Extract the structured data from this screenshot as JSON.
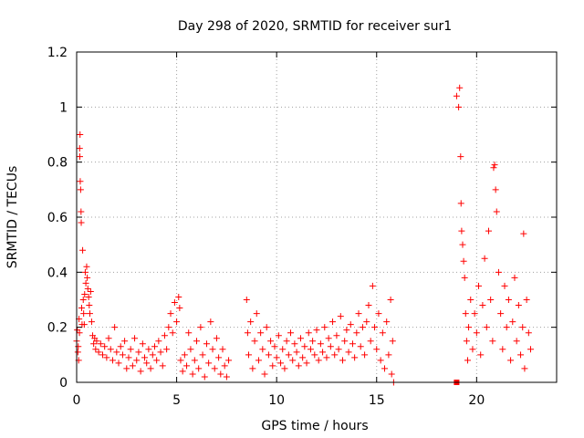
{
  "chart_data": {
    "type": "scatter",
    "title": "Day 298 of 2020, SRMTID for receiver sur1",
    "xlabel": "GPS time / hours",
    "ylabel": "SRMTID / TECUs",
    "xlim": [
      0,
      24
    ],
    "ylim": [
      0,
      1.2
    ],
    "xticks": [
      0,
      5,
      10,
      15,
      20
    ],
    "xtick_labels": [
      "0",
      "5",
      "10",
      "15",
      "20"
    ],
    "yticks": [
      0,
      0.2,
      0.4,
      0.6,
      0.8,
      1,
      1.2
    ],
    "ytick_labels": [
      "0",
      "0.2",
      "0.4",
      "0.6",
      "0.8",
      "1",
      "1.2"
    ],
    "grid": true,
    "marker": "plus",
    "color": "#ff0000",
    "series": [
      {
        "name": "sur1",
        "points": [
          [
            0.0,
            0.15
          ],
          [
            0.03,
            0.19
          ],
          [
            0.06,
            0.11
          ],
          [
            0.08,
            0.13
          ],
          [
            0.1,
            0.08
          ],
          [
            0.12,
            0.23
          ],
          [
            0.14,
            0.18
          ],
          [
            0.15,
            0.85
          ],
          [
            0.16,
            0.82
          ],
          [
            0.17,
            0.9
          ],
          [
            0.18,
            0.73
          ],
          [
            0.2,
            0.7
          ],
          [
            0.22,
            0.62
          ],
          [
            0.23,
            0.58
          ],
          [
            0.25,
            0.27
          ],
          [
            0.27,
            0.21
          ],
          [
            0.3,
            0.48
          ],
          [
            0.33,
            0.3
          ],
          [
            0.35,
            0.25
          ],
          [
            0.38,
            0.21
          ],
          [
            0.4,
            0.32
          ],
          [
            0.43,
            0.4
          ],
          [
            0.46,
            0.36
          ],
          [
            0.5,
            0.42
          ],
          [
            0.53,
            0.38
          ],
          [
            0.56,
            0.34
          ],
          [
            0.6,
            0.31
          ],
          [
            0.63,
            0.28
          ],
          [
            0.66,
            0.25
          ],
          [
            0.7,
            0.33
          ],
          [
            0.75,
            0.22
          ],
          [
            0.8,
            0.17
          ],
          [
            0.85,
            0.14
          ],
          [
            0.9,
            0.16
          ],
          [
            0.95,
            0.12
          ],
          [
            1.0,
            0.15
          ],
          [
            1.1,
            0.11
          ],
          [
            1.2,
            0.14
          ],
          [
            1.3,
            0.1
          ],
          [
            1.4,
            0.13
          ],
          [
            1.5,
            0.09
          ],
          [
            1.6,
            0.16
          ],
          [
            1.7,
            0.12
          ],
          [
            1.8,
            0.08
          ],
          [
            1.9,
            0.2
          ],
          [
            2.0,
            0.11
          ],
          [
            2.1,
            0.07
          ],
          [
            2.2,
            0.13
          ],
          [
            2.3,
            0.1
          ],
          [
            2.4,
            0.15
          ],
          [
            2.5,
            0.05
          ],
          [
            2.6,
            0.09
          ],
          [
            2.7,
            0.12
          ],
          [
            2.8,
            0.06
          ],
          [
            2.9,
            0.16
          ],
          [
            3.0,
            0.08
          ],
          [
            3.1,
            0.11
          ],
          [
            3.2,
            0.04
          ],
          [
            3.3,
            0.14
          ],
          [
            3.4,
            0.09
          ],
          [
            3.5,
            0.07
          ],
          [
            3.6,
            0.12
          ],
          [
            3.7,
            0.05
          ],
          [
            3.8,
            0.1
          ],
          [
            3.9,
            0.13
          ],
          [
            4.0,
            0.08
          ],
          [
            4.1,
            0.15
          ],
          [
            4.2,
            0.11
          ],
          [
            4.3,
            0.06
          ],
          [
            4.4,
            0.17
          ],
          [
            4.5,
            0.12
          ],
          [
            4.6,
            0.2
          ],
          [
            4.7,
            0.25
          ],
          [
            4.8,
            0.18
          ],
          [
            4.9,
            0.29
          ],
          [
            5.0,
            0.22
          ],
          [
            5.1,
            0.31
          ],
          [
            5.15,
            0.27
          ],
          [
            5.2,
            0.08
          ],
          [
            5.3,
            0.04
          ],
          [
            5.4,
            0.1
          ],
          [
            5.5,
            0.06
          ],
          [
            5.6,
            0.18
          ],
          [
            5.7,
            0.12
          ],
          [
            5.8,
            0.03
          ],
          [
            5.9,
            0.08
          ],
          [
            6.0,
            0.15
          ],
          [
            6.1,
            0.05
          ],
          [
            6.2,
            0.2
          ],
          [
            6.3,
            0.1
          ],
          [
            6.4,
            0.02
          ],
          [
            6.5,
            0.14
          ],
          [
            6.6,
            0.07
          ],
          [
            6.7,
            0.22
          ],
          [
            6.8,
            0.12
          ],
          [
            6.9,
            0.05
          ],
          [
            7.0,
            0.16
          ],
          [
            7.1,
            0.09
          ],
          [
            7.2,
            0.03
          ],
          [
            7.3,
            0.12
          ],
          [
            7.4,
            0.06
          ],
          [
            7.5,
            0.02
          ],
          [
            7.6,
            0.08
          ],
          [
            8.5,
            0.3
          ],
          [
            8.55,
            0.18
          ],
          [
            8.6,
            0.1
          ],
          [
            8.7,
            0.22
          ],
          [
            8.8,
            0.05
          ],
          [
            8.9,
            0.15
          ],
          [
            9.0,
            0.25
          ],
          [
            9.1,
            0.08
          ],
          [
            9.2,
            0.18
          ],
          [
            9.3,
            0.12
          ],
          [
            9.4,
            0.03
          ],
          [
            9.5,
            0.2
          ],
          [
            9.6,
            0.1
          ],
          [
            9.7,
            0.15
          ],
          [
            9.8,
            0.06
          ],
          [
            9.9,
            0.13
          ],
          [
            10.0,
            0.09
          ],
          [
            10.1,
            0.17
          ],
          [
            10.2,
            0.07
          ],
          [
            10.3,
            0.12
          ],
          [
            10.4,
            0.05
          ],
          [
            10.5,
            0.15
          ],
          [
            10.6,
            0.1
          ],
          [
            10.7,
            0.18
          ],
          [
            10.8,
            0.08
          ],
          [
            10.9,
            0.14
          ],
          [
            11.0,
            0.11
          ],
          [
            11.1,
            0.06
          ],
          [
            11.2,
            0.16
          ],
          [
            11.3,
            0.09
          ],
          [
            11.4,
            0.13
          ],
          [
            11.5,
            0.07
          ],
          [
            11.6,
            0.18
          ],
          [
            11.7,
            0.12
          ],
          [
            11.8,
            0.15
          ],
          [
            11.9,
            0.1
          ],
          [
            12.0,
            0.19
          ],
          [
            12.1,
            0.08
          ],
          [
            12.2,
            0.14
          ],
          [
            12.3,
            0.11
          ],
          [
            12.4,
            0.2
          ],
          [
            12.5,
            0.09
          ],
          [
            12.6,
            0.16
          ],
          [
            12.7,
            0.13
          ],
          [
            12.8,
            0.22
          ],
          [
            12.9,
            0.1
          ],
          [
            13.0,
            0.17
          ],
          [
            13.1,
            0.12
          ],
          [
            13.2,
            0.24
          ],
          [
            13.3,
            0.08
          ],
          [
            13.4,
            0.15
          ],
          [
            13.5,
            0.19
          ],
          [
            13.6,
            0.11
          ],
          [
            13.7,
            0.21
          ],
          [
            13.8,
            0.14
          ],
          [
            13.9,
            0.09
          ],
          [
            14.0,
            0.18
          ],
          [
            14.1,
            0.25
          ],
          [
            14.2,
            0.13
          ],
          [
            14.3,
            0.2
          ],
          [
            14.4,
            0.1
          ],
          [
            14.5,
            0.22
          ],
          [
            14.6,
            0.28
          ],
          [
            14.7,
            0.15
          ],
          [
            14.8,
            0.35
          ],
          [
            14.9,
            0.2
          ],
          [
            15.0,
            0.12
          ],
          [
            15.1,
            0.25
          ],
          [
            15.2,
            0.08
          ],
          [
            15.3,
            0.18
          ],
          [
            15.4,
            0.05
          ],
          [
            15.5,
            0.22
          ],
          [
            15.6,
            0.1
          ],
          [
            15.7,
            0.3
          ],
          [
            15.75,
            0.03
          ],
          [
            15.8,
            0.15
          ],
          [
            15.85,
            0.0
          ],
          [
            19.0,
            1.04
          ],
          [
            19.1,
            1.0
          ],
          [
            19.15,
            1.07
          ],
          [
            19.2,
            0.82
          ],
          [
            19.22,
            0.65
          ],
          [
            19.25,
            0.55
          ],
          [
            19.3,
            0.5
          ],
          [
            19.35,
            0.44
          ],
          [
            19.4,
            0.38
          ],
          [
            19.45,
            0.25
          ],
          [
            19.5,
            0.15
          ],
          [
            19.55,
            0.08
          ],
          [
            19.6,
            0.2
          ],
          [
            19.7,
            0.3
          ],
          [
            19.8,
            0.12
          ],
          [
            19.9,
            0.25
          ],
          [
            20.0,
            0.18
          ],
          [
            20.1,
            0.35
          ],
          [
            20.2,
            0.1
          ],
          [
            20.3,
            0.28
          ],
          [
            20.4,
            0.45
          ],
          [
            20.5,
            0.2
          ],
          [
            20.6,
            0.55
          ],
          [
            20.7,
            0.3
          ],
          [
            20.8,
            0.15
          ],
          [
            20.85,
            0.78
          ],
          [
            20.9,
            0.79
          ],
          [
            20.95,
            0.7
          ],
          [
            21.0,
            0.62
          ],
          [
            21.1,
            0.4
          ],
          [
            21.2,
            0.25
          ],
          [
            21.3,
            0.12
          ],
          [
            21.4,
            0.35
          ],
          [
            21.5,
            0.2
          ],
          [
            21.6,
            0.3
          ],
          [
            21.7,
            0.08
          ],
          [
            21.8,
            0.22
          ],
          [
            21.9,
            0.38
          ],
          [
            22.0,
            0.15
          ],
          [
            22.1,
            0.28
          ],
          [
            22.2,
            0.1
          ],
          [
            22.3,
            0.2
          ],
          [
            22.35,
            0.54
          ],
          [
            22.4,
            0.05
          ],
          [
            22.5,
            0.3
          ],
          [
            22.6,
            0.18
          ],
          [
            22.7,
            0.12
          ]
        ]
      }
    ],
    "extra_marker": {
      "x": 19.0,
      "y": 0.0
    }
  }
}
